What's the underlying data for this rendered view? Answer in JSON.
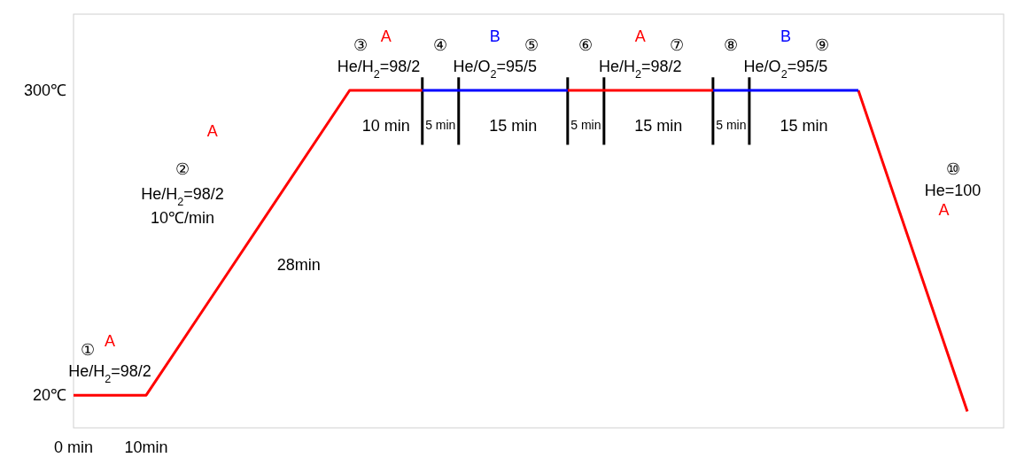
{
  "chart_data": {
    "type": "line",
    "series": [
      {
        "name": "A",
        "color": "#ff0000",
        "x": [
          0,
          10,
          38,
          48,
          58,
          68,
          88,
          98,
          108,
          123
        ],
        "values": [
          20,
          20,
          300,
          300,
          null,
          300,
          300,
          null,
          300,
          5
        ]
      },
      {
        "name": "B",
        "color": "#0000ff",
        "x": [
          48,
          68,
          78,
          88,
          108
        ],
        "values": [
          300,
          300,
          null,
          300,
          300
        ]
      }
    ],
    "xlim": [
      0,
      128
    ],
    "xticks": [
      {
        "value": 0,
        "label": "0 min"
      },
      {
        "value": 10,
        "label": "10min"
      }
    ],
    "ylim": [
      -10,
      370
    ],
    "yticks": [
      {
        "value": 20,
        "label": "20℃"
      },
      {
        "value": 300,
        "label": "300℃"
      }
    ],
    "ref_lines": [
      {
        "axis": "x",
        "value": 48,
        "label": null,
        "color": "#000000"
      },
      {
        "axis": "x",
        "value": 53,
        "label": null,
        "color": "#000000"
      },
      {
        "axis": "x",
        "value": 68,
        "label": null,
        "color": "#000000"
      },
      {
        "axis": "x",
        "value": 73,
        "label": null,
        "color": "#000000"
      },
      {
        "axis": "x",
        "value": 88,
        "label": null,
        "color": "#000000"
      },
      {
        "axis": "x",
        "value": 93,
        "label": null,
        "color": "#000000"
      }
    ],
    "annotations": [
      "①",
      "He/H$_{2}$=98/2",
      "②",
      "He/H$_{2}$=98/2",
      "10℃/min",
      "28min",
      "③",
      "He/H$_{2}$=98/2",
      "10 min",
      "④",
      "⑤",
      "He/O$_{2}$=95/5",
      "5 min",
      "15 min",
      "⑥",
      "⑦",
      "He/H$_{2}$=98/2",
      "5 min",
      "15 min",
      "⑧",
      "⑨",
      "He/O$_{2}$=95/5",
      "5 min",
      "15 min",
      "⑩",
      "He=100"
    ]
  }
}
